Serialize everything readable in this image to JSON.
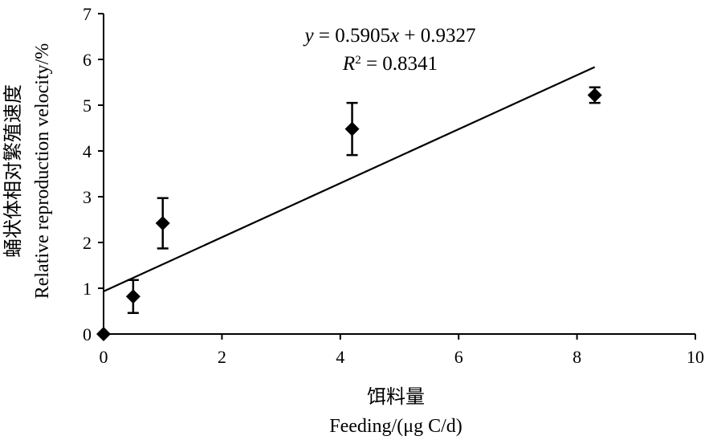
{
  "chart_data": {
    "type": "scatter",
    "xlabel_cn": "饵料量",
    "xlabel_en": "Feeding/(μg C/d)",
    "ylabel_cn": "蛹状体相对繁殖速度",
    "ylabel_en": "Relative reproduction velocity/%",
    "xlim": [
      0,
      10
    ],
    "ylim": [
      0,
      7
    ],
    "xticks": [
      0,
      2,
      4,
      6,
      8,
      10
    ],
    "yticks": [
      0,
      1,
      2,
      3,
      4,
      5,
      6,
      7
    ],
    "points": [
      {
        "x": 0,
        "y": 0,
        "err": 0
      },
      {
        "x": 0.5,
        "y": 0.82,
        "err": 0.36
      },
      {
        "x": 1.0,
        "y": 2.42,
        "err": 0.55
      },
      {
        "x": 4.2,
        "y": 4.48,
        "err": 0.57
      },
      {
        "x": 8.3,
        "y": 5.22,
        "err": 0.17
      }
    ],
    "trendline": {
      "slope": 0.5905,
      "intercept": 0.9327,
      "x_start": 0,
      "x_end": 8.3
    },
    "equation": {
      "y_var": "y",
      "equals_slope": " = 0.5905",
      "x_var": "x",
      "intercept_part": " + 0.9327",
      "r_var": "R",
      "r_sup": "2",
      "r_value": " = 0.8341"
    },
    "grid": false,
    "legend": "none"
  }
}
